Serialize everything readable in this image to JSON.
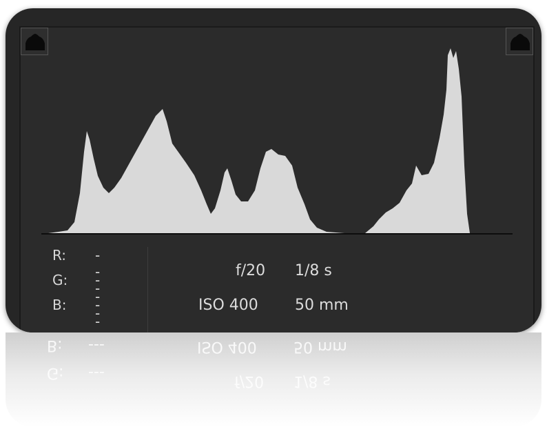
{
  "histogram": {
    "fill_color": "#d9d9d9",
    "background_color": "#2b2b2b",
    "shadow_clipping_icon": "shadow-clipping-warning-icon",
    "highlight_clipping_icon": "highlight-clipping-warning-icon"
  },
  "readout": {
    "r_label": "R:",
    "g_label": "G:",
    "b_label": "B:",
    "r_value": "---",
    "g_value": "---",
    "b_value": "---"
  },
  "exif": {
    "aperture": "f/20",
    "shutter": "1/8 s",
    "iso": "ISO 400",
    "focal_length": "50 mm"
  }
}
